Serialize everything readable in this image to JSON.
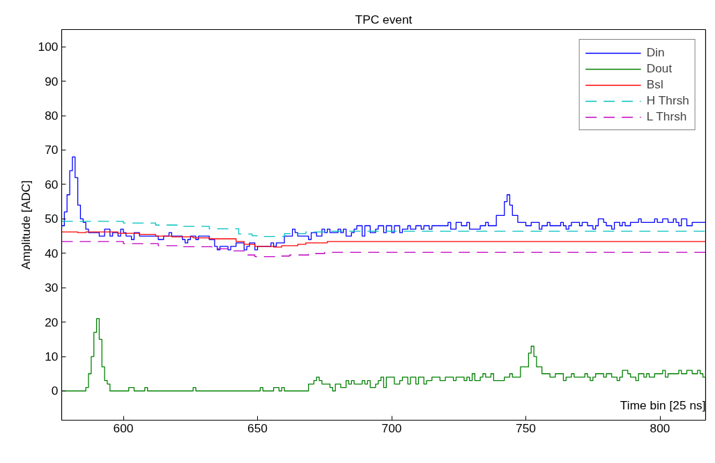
{
  "chart_data": {
    "type": "step",
    "title": "TPC event",
    "xlabel": "Time bin [25 ns]",
    "ylabel": "Amplitude [ADC]",
    "xlim": [
      577,
      817
    ],
    "ylim": [
      -8.5,
      105
    ],
    "xticks": [
      600,
      650,
      700,
      750,
      800
    ],
    "yticks": [
      0,
      10,
      20,
      30,
      40,
      50,
      60,
      70,
      80,
      90,
      100
    ],
    "grid": false,
    "legend": "top right",
    "series": [
      {
        "name": "Din",
        "color": "#0000ff",
        "line_style": "solid",
        "x": [
          577,
          578,
          579,
          580,
          581,
          582,
          583,
          584,
          585,
          586,
          587,
          591,
          593,
          595,
          596,
          598,
          599,
          600,
          601,
          603,
          604,
          606,
          613,
          615,
          617,
          618,
          622,
          623,
          624,
          625,
          627,
          628,
          632,
          634,
          635,
          636,
          639,
          640,
          642,
          645,
          646,
          647,
          649,
          650,
          655,
          656,
          657,
          660,
          663,
          664,
          665,
          669,
          670,
          672,
          674,
          675,
          676,
          677,
          680,
          681,
          682,
          683,
          685,
          686,
          687,
          689,
          690,
          692,
          694,
          695,
          697,
          698,
          700,
          701,
          703,
          704,
          706,
          707,
          709,
          711,
          712,
          714,
          715,
          721,
          722,
          724,
          726,
          728,
          729,
          733,
          735,
          736,
          739,
          742,
          743,
          744,
          745,
          747,
          750,
          752,
          755,
          756,
          758,
          759,
          763,
          764,
          765,
          766,
          767,
          770,
          771,
          773,
          775,
          776,
          777,
          779,
          780,
          782,
          783,
          785,
          786,
          787,
          789,
          792,
          793,
          798,
          799,
          801,
          803,
          805,
          806,
          807,
          808,
          810,
          812,
          817
        ],
        "values": [
          48,
          52,
          57,
          64,
          68,
          62,
          54,
          50,
          49,
          47,
          46,
          45,
          47,
          45,
          46,
          45,
          47,
          46,
          45,
          44,
          46,
          45,
          44,
          45,
          46,
          45,
          44,
          43,
          44,
          45,
          44,
          45,
          44,
          42,
          41,
          42,
          41,
          42,
          43,
          41,
          42,
          43,
          41,
          42,
          43,
          42,
          43,
          45,
          47,
          46,
          45,
          44,
          46,
          45,
          47,
          46,
          47,
          46,
          47,
          46,
          47,
          45,
          46,
          47,
          48,
          45,
          48,
          46,
          47,
          48,
          46,
          48,
          46,
          48,
          46,
          47,
          48,
          47,
          48,
          47,
          48,
          47,
          48,
          49,
          47,
          49,
          48,
          49,
          47,
          48,
          49,
          48,
          51,
          55,
          57,
          54,
          51,
          49,
          48,
          49,
          47,
          48,
          49,
          48,
          49,
          48,
          47,
          48,
          49,
          48,
          49,
          48,
          47,
          48,
          50,
          49,
          48,
          47,
          49,
          48,
          49,
          48,
          49,
          50,
          49,
          50,
          49,
          50,
          49,
          50,
          49,
          48,
          50,
          48,
          49,
          49
        ]
      },
      {
        "name": "Dout",
        "color": "#008000",
        "line_style": "solid",
        "x": [
          577,
          586,
          587,
          588,
          589,
          590,
          591,
          592,
          593,
          594,
          595,
          602,
          604,
          608,
          609,
          626,
          627,
          651,
          652,
          656,
          658,
          659,
          660,
          669,
          671,
          672,
          673,
          674,
          677,
          678,
          679,
          681,
          683,
          684,
          685,
          686,
          689,
          690,
          691,
          692,
          694,
          695,
          696,
          697,
          698,
          701,
          703,
          704,
          706,
          707,
          709,
          710,
          712,
          713,
          715,
          718,
          720,
          723,
          724,
          727,
          728,
          729,
          730,
          731,
          733,
          734,
          735,
          737,
          738,
          742,
          744,
          745,
          748,
          751,
          752,
          753,
          754,
          756,
          759,
          761,
          764,
          765,
          767,
          768,
          772,
          773,
          774,
          775,
          776,
          779,
          780,
          782,
          784,
          785,
          786,
          788,
          789,
          791,
          792,
          794,
          795,
          796,
          798,
          801,
          802,
          803,
          807,
          808,
          810,
          812,
          814,
          815,
          816,
          817
        ],
        "values": [
          0,
          1,
          5,
          10,
          17,
          21,
          15,
          7,
          3,
          2,
          0,
          1,
          0,
          1,
          0,
          1,
          0,
          1,
          0,
          1,
          0,
          1,
          0,
          2,
          3,
          4,
          3,
          2,
          1,
          0,
          2,
          1,
          3,
          2,
          3,
          2,
          3,
          2,
          3,
          1,
          2,
          3,
          4,
          1,
          4,
          2,
          3,
          4,
          2,
          4,
          2,
          4,
          2,
          3,
          4,
          3,
          4,
          3,
          4,
          3,
          4,
          3,
          5,
          3,
          4,
          5,
          4,
          5,
          3,
          4,
          5,
          4,
          7,
          11,
          13,
          10,
          7,
          5,
          4,
          5,
          3,
          4,
          5,
          4,
          5,
          4,
          3,
          4,
          5,
          4,
          5,
          4,
          3,
          4,
          6,
          5,
          4,
          3,
          5,
          4,
          5,
          4,
          5,
          6,
          4,
          5,
          6,
          5,
          6,
          5,
          6,
          5,
          4,
          6
        ]
      },
      {
        "name": "Bsl",
        "color": "#ff0000",
        "line_style": "solid",
        "x": [
          577,
          583,
          586,
          598,
          606,
          612,
          618,
          626,
          632,
          642,
          645,
          649,
          656,
          659,
          665,
          668,
          676,
          817
        ],
        "values": [
          46.2,
          46,
          46.2,
          45.8,
          45.5,
          45,
          44.8,
          44.5,
          44.2,
          43.4,
          42.6,
          42,
          41.8,
          42.2,
          42.6,
          43,
          43.4,
          43.4
        ]
      },
      {
        "name": "H Thrsh",
        "color": "#00bfbf",
        "line_style": "dashed",
        "x": [
          577,
          600,
          612,
          620,
          632,
          643,
          648,
          652,
          660,
          668,
          675,
          817
        ],
        "values": [
          49.3,
          48.8,
          48.2,
          47.8,
          47.1,
          45.6,
          45.1,
          44.9,
          45.7,
          46.2,
          46.4,
          46.4
        ]
      },
      {
        "name": "L Thrsh",
        "color": "#bf00bf",
        "line_style": "dashed",
        "x": [
          577,
          600,
          613,
          620,
          633,
          641,
          645,
          649,
          657,
          662,
          669,
          675,
          817
        ],
        "values": [
          43.4,
          42.8,
          42.2,
          41.9,
          41.3,
          40.7,
          39.5,
          39,
          39.2,
          39.5,
          39.9,
          40.3,
          40.3
        ]
      }
    ]
  }
}
